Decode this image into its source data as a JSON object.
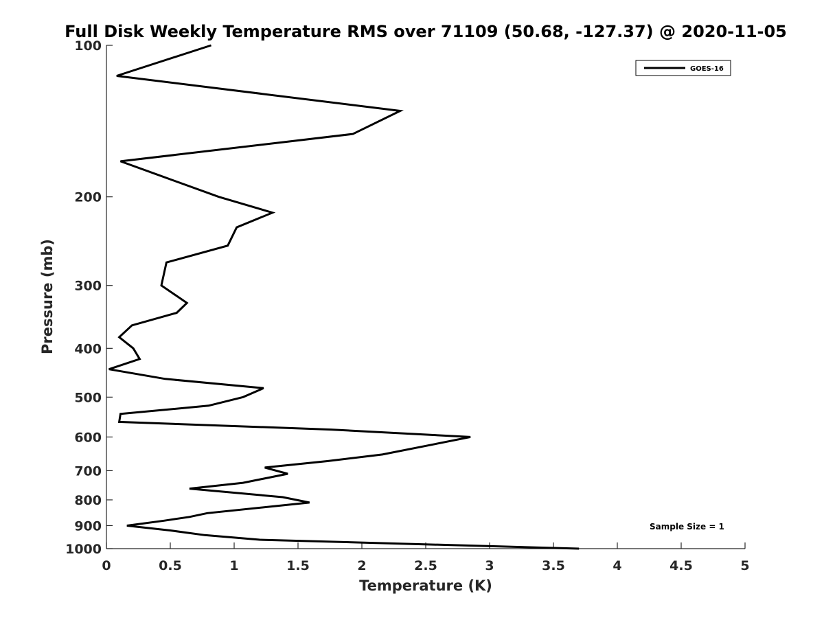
{
  "chart_data": {
    "type": "line",
    "title": "Full Disk Weekly Temperature RMS over 71109 (50.68, -127.37) @ 2020-11-05",
    "xlabel": "Temperature (K)",
    "ylabel": "Pressure (mb)",
    "xlim": [
      0,
      5
    ],
    "ylim": [
      1000,
      100
    ],
    "y_scale": "log",
    "y_reversed": true,
    "x_ticks": [
      "0",
      "0.5",
      "1",
      "1.5",
      "2",
      "2.5",
      "3",
      "3.5",
      "4",
      "4.5",
      "5"
    ],
    "y_ticks": [
      "100",
      "200",
      "300",
      "400",
      "500",
      "600",
      "700",
      "800",
      "900",
      "1000"
    ],
    "grid": false,
    "legend_position": "top-right",
    "annotation": "Sample Size = 1",
    "series": [
      {
        "name": "GOES-16",
        "color": "#000000",
        "points": [
          [
            0.82,
            100
          ],
          [
            0.08,
            115
          ],
          [
            2.3,
            135
          ],
          [
            1.93,
            150
          ],
          [
            0.11,
            170
          ],
          [
            0.88,
            200
          ],
          [
            1.3,
            215
          ],
          [
            1.02,
            230
          ],
          [
            0.95,
            250
          ],
          [
            0.47,
            270
          ],
          [
            0.43,
            300
          ],
          [
            0.63,
            325
          ],
          [
            0.55,
            340
          ],
          [
            0.2,
            360
          ],
          [
            0.1,
            380
          ],
          [
            0.21,
            400
          ],
          [
            0.26,
            420
          ],
          [
            0.02,
            440
          ],
          [
            0.46,
            460
          ],
          [
            1.23,
            480
          ],
          [
            1.07,
            500
          ],
          [
            0.8,
            520
          ],
          [
            0.11,
            540
          ],
          [
            0.1,
            560
          ],
          [
            1.76,
            580
          ],
          [
            2.85,
            600
          ],
          [
            2.57,
            620
          ],
          [
            2.16,
            650
          ],
          [
            1.73,
            670
          ],
          [
            1.24,
            690
          ],
          [
            1.42,
            710
          ],
          [
            1.07,
            740
          ],
          [
            0.65,
            760
          ],
          [
            1.38,
            790
          ],
          [
            1.59,
            810
          ],
          [
            0.79,
            850
          ],
          [
            0.65,
            865
          ],
          [
            0.45,
            880
          ],
          [
            0.16,
            900
          ],
          [
            0.5,
            920
          ],
          [
            0.77,
            940
          ],
          [
            1.2,
            960
          ],
          [
            3.7,
            1000
          ]
        ]
      }
    ]
  }
}
